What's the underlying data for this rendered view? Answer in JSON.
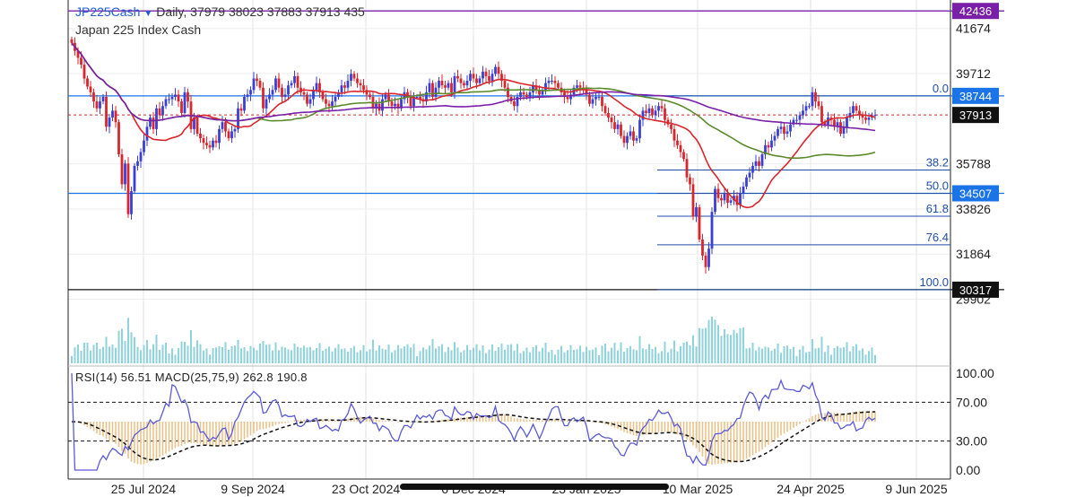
{
  "header": {
    "symbol": "JP225Cash",
    "interval": "Daily,",
    "ohlc": "37979 38023 37883 37913 435",
    "name": "Japan 225 Index Cash"
  },
  "indicators_label": "RSI(14) 56.51 MACD(25,75,9) 262.8 190.8",
  "colors": {
    "up": "#3a3fd6",
    "down": "#d8262c",
    "ma_fast": "#d8262c",
    "ma_mid": "#5a8a2a",
    "ma_slow": "#7a20a8",
    "fib": "#1f4fa8",
    "volume": "#8fd3dc",
    "rsi": "#5a5ad6",
    "macd_hist": "#e7c38a",
    "macd_signal": "#111111",
    "price_box": "#111111",
    "level_box": "#1a74e8",
    "top_box": "#7a20a8"
  },
  "chart_data": {
    "type": "candlestick",
    "title": "JP225Cash Daily",
    "subtitle": "Japan 225 Index Cash",
    "price_axis_ticks": [
      "41674",
      "39712",
      "35788",
      "33826",
      "31864",
      "29902"
    ],
    "price_range": [
      29650,
      42600
    ],
    "date_ticks": [
      "25 Jul 2024",
      "9 Sep 2024",
      "23 Oct 2024",
      "6 Dec 2024",
      "23 Jan 2025",
      "10 Mar 2025",
      "24 Apr 2025",
      "9 Jun 2025"
    ],
    "last_price": 37913,
    "price_labels": [
      {
        "text": "42436",
        "value": 42436,
        "style": "top"
      },
      {
        "text": "38744",
        "value": 38744,
        "style": "level"
      },
      {
        "text": "37913",
        "value": 37913,
        "style": "last"
      },
      {
        "text": "34507",
        "value": 34507,
        "style": "level"
      },
      {
        "text": "30317",
        "value": 30317,
        "style": "black"
      }
    ],
    "horizontal_levels": [
      42436,
      38744,
      34507,
      30317
    ],
    "fib_levels": [
      {
        "label": "0.0",
        "value": 38744
      },
      {
        "label": "38.2",
        "value": 35520
      },
      {
        "label": "50.0",
        "value": 34507
      },
      {
        "label": "61.8",
        "value": 33510
      },
      {
        "label": "76.4",
        "value": 32270
      },
      {
        "label": "100.0",
        "value": 30317
      }
    ],
    "closes": [
      41050,
      40700,
      40400,
      40100,
      39500,
      39150,
      38900,
      38500,
      38200,
      38500,
      38700,
      37400,
      37800,
      38100,
      37600,
      36200,
      34900,
      35800,
      33600,
      34600,
      35700,
      35900,
      36300,
      36800,
      37400,
      37800,
      37300,
      38200,
      37900,
      38300,
      38600,
      38600,
      38700,
      38800,
      38500,
      38000,
      38900,
      38500,
      37300,
      37800,
      37100,
      36900,
      36700,
      36600,
      36500,
      36800,
      36700,
      37300,
      37600,
      37200,
      36900,
      37200,
      37300,
      38200,
      38100,
      38700,
      38800,
      39000,
      39500,
      39400,
      39100,
      38200,
      38600,
      38800,
      39000,
      39500,
      39100,
      38700,
      38800,
      39200,
      39300,
      39600,
      39100,
      38900,
      38800,
      38400,
      38600,
      39000,
      39300,
      38900,
      38600,
      38400,
      38300,
      38500,
      38700,
      38900,
      39200,
      39100,
      39400,
      39700,
      39500,
      39300,
      39200,
      39000,
      38800,
      38700,
      38200,
      38400,
      38100,
      38600,
      38800,
      38500,
      38300,
      38400,
      38200,
      38600,
      38900,
      38700,
      38300,
      38700,
      38700,
      38600,
      38500,
      38900,
      39300,
      38700,
      39100,
      39400,
      39200,
      39100,
      39300,
      38900,
      39600,
      39500,
      39300,
      39200,
      39400,
      39700,
      39500,
      39300,
      39500,
      39800,
      39600,
      39400,
      39700,
      40000,
      39700,
      39400,
      39100,
      38700,
      38500,
      38300,
      38700,
      38900,
      38800,
      38700,
      38900,
      39200,
      39000,
      38800,
      39000,
      39300,
      39400,
      39400,
      39300,
      39100,
      38900,
      38700,
      38600,
      38800,
      39100,
      39200,
      39100,
      39000,
      38800,
      38400,
      38600,
      38700,
      38700,
      38300,
      38000,
      37800,
      37600,
      37300,
      37500,
      37000,
      36700,
      37000,
      37200,
      36800,
      36900,
      37700,
      38100,
      38000,
      38200,
      37900,
      38100,
      38300,
      38200,
      37700,
      37500,
      37300,
      36800,
      36600,
      36300,
      36000,
      35200,
      34900,
      33500,
      33900,
      32500,
      31800,
      31300,
      32100,
      33700,
      34700,
      34300,
      34200,
      34500,
      34100,
      34200,
      34400,
      34000,
      34500,
      34800,
      35200,
      35400,
      35700,
      35900,
      35700,
      36200,
      36600,
      36500,
      36800,
      37000,
      37300,
      37400,
      37100,
      37200,
      37500,
      37700,
      37700,
      37900,
      38100,
      38300,
      38300,
      38900,
      38500,
      38300,
      37600,
      37500,
      37800,
      37700,
      37400,
      37600,
      37100,
      37400,
      37800,
      38000,
      38300,
      38100,
      37900,
      37800,
      37700,
      37800,
      37900,
      37913
    ]
  }
}
